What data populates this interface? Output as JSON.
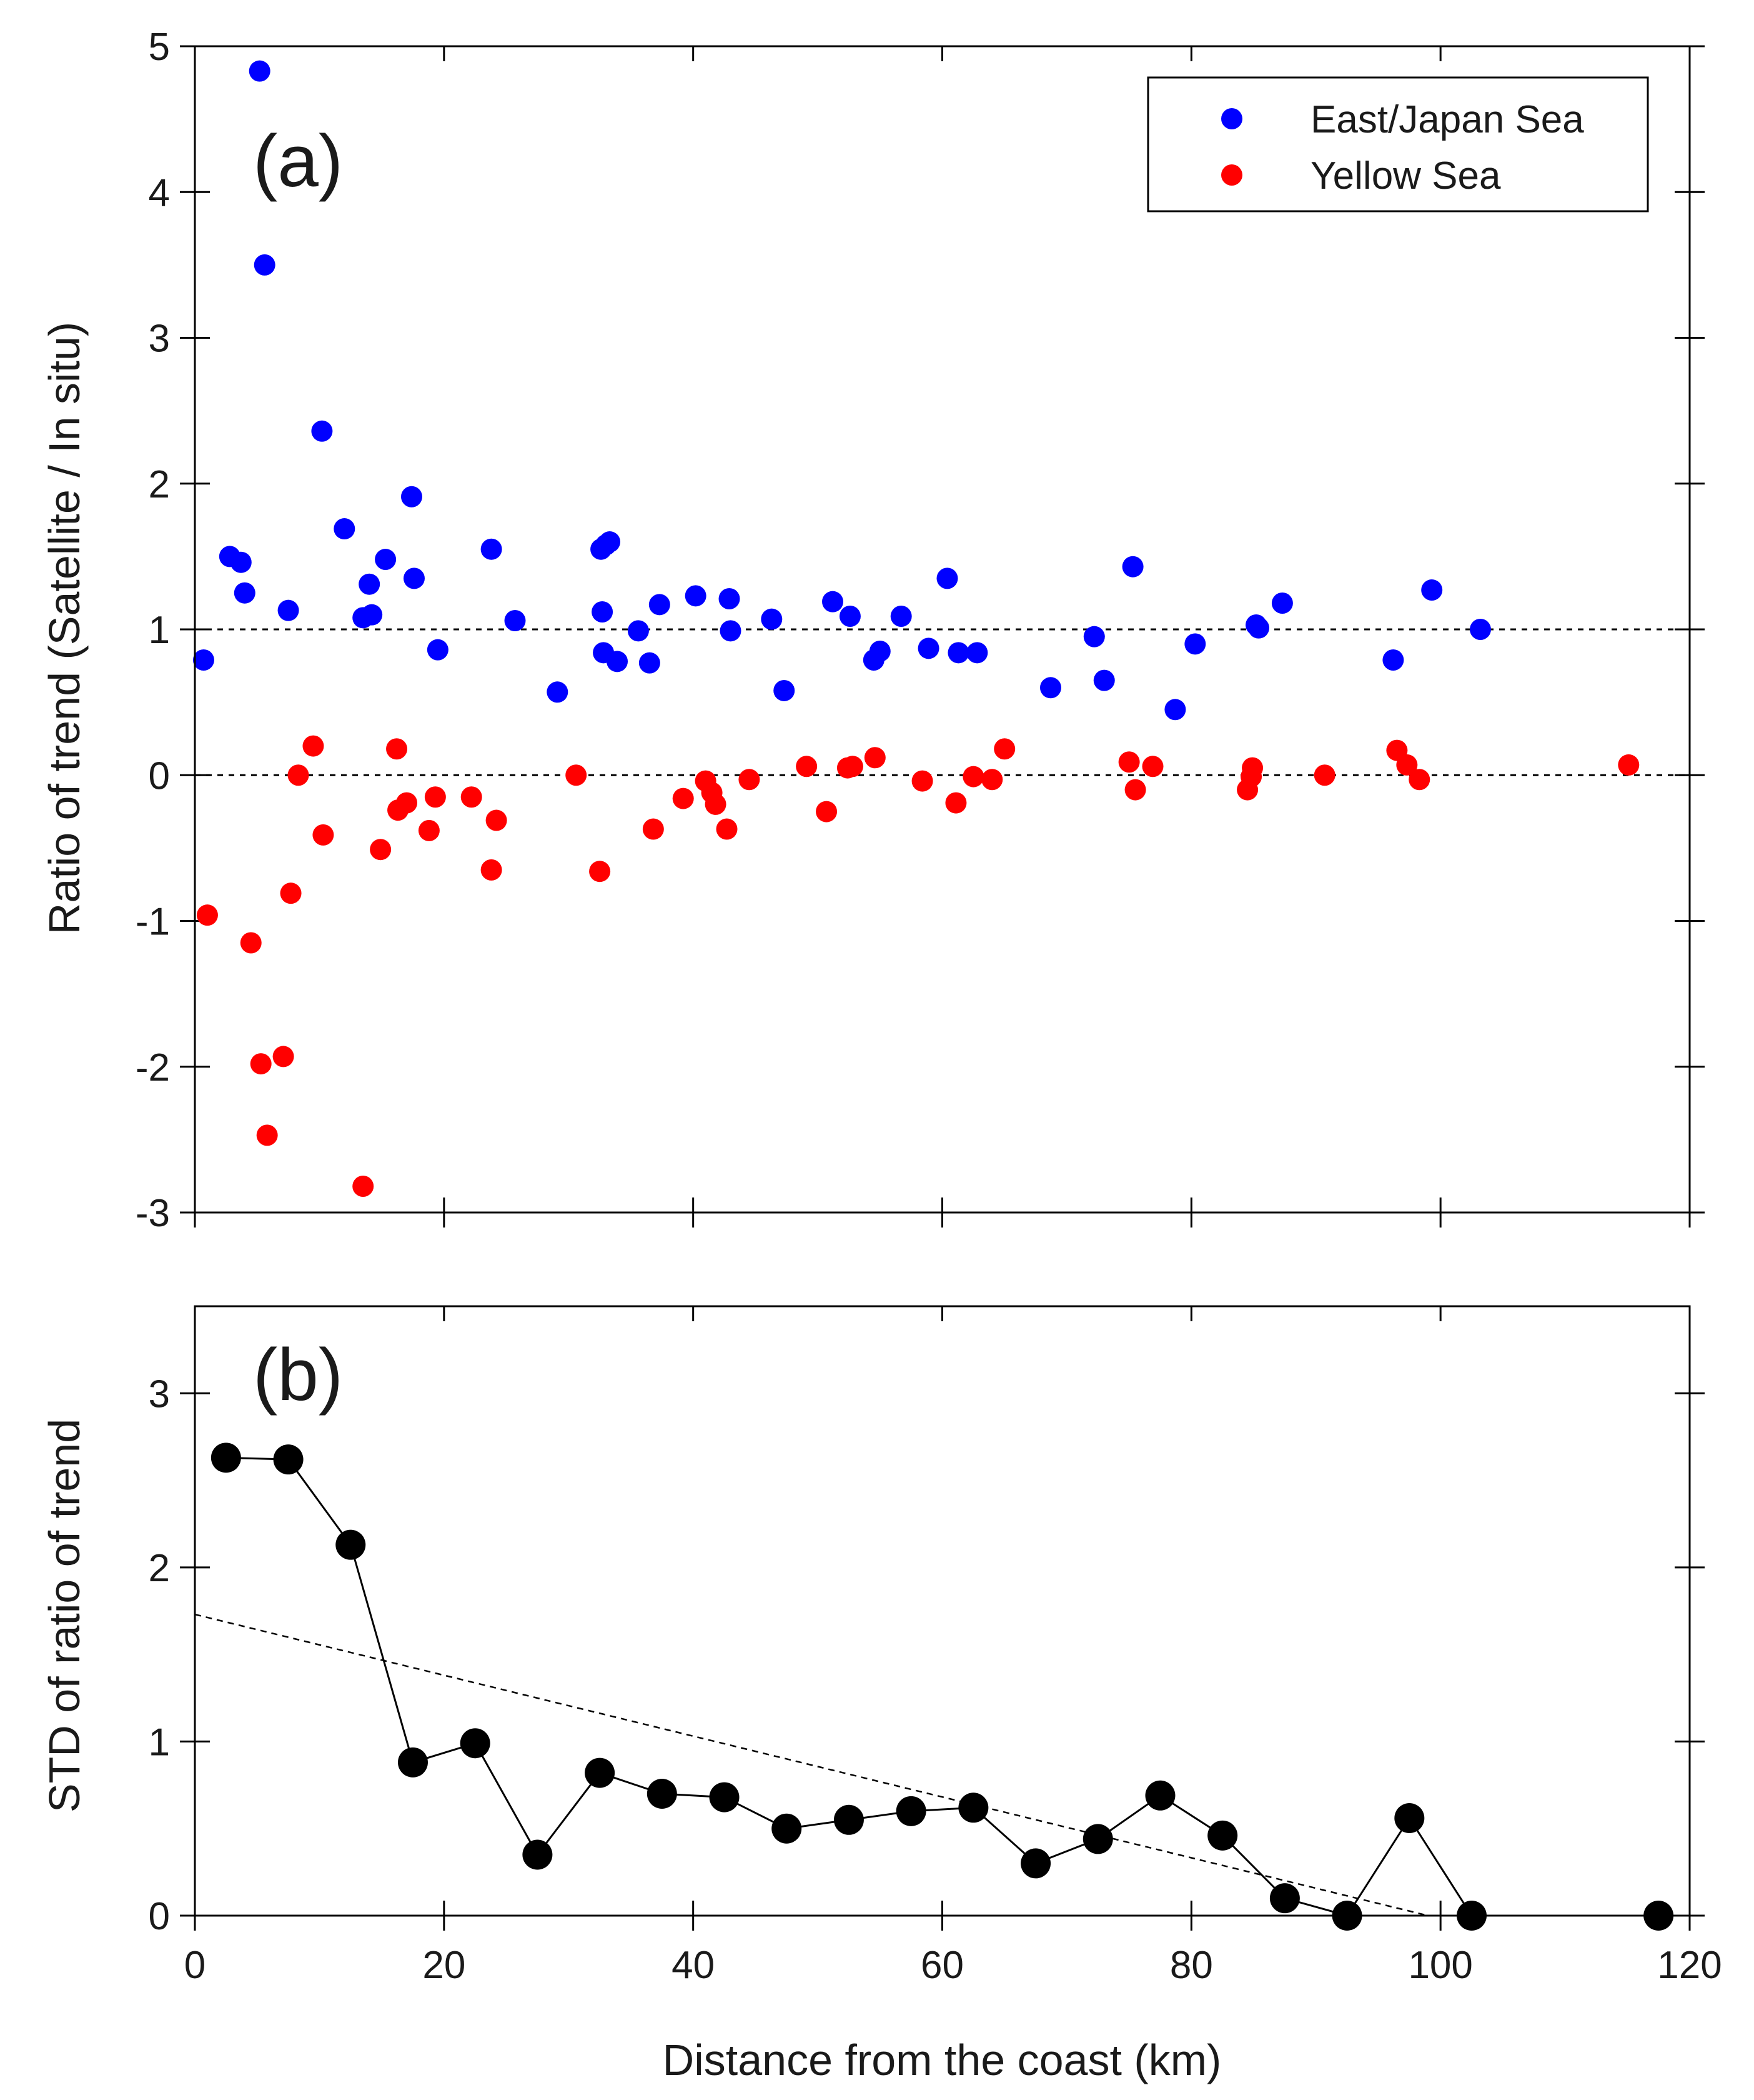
{
  "chart_data": [
    {
      "panel_label": "(a)",
      "type": "scatter",
      "xlabel": "",
      "ylabel": "Ratio of trend (Satellite / In situ)",
      "xlim": [
        0,
        120
      ],
      "ylim": [
        -3,
        5
      ],
      "x_ticks": [
        0,
        20,
        40,
        60,
        80,
        100,
        120
      ],
      "y_ticks": [
        -3,
        -2,
        -1,
        0,
        1,
        2,
        3,
        4,
        5
      ],
      "y_tick_labels": [
        "-3",
        "-2",
        "-1",
        "0",
        "1",
        "2",
        "3",
        "4",
        "5"
      ],
      "reference_lines": [
        1,
        0
      ],
      "legend_position": "top-right",
      "series": [
        {
          "name": "East/Japan Sea",
          "color": "#0000ff",
          "points": [
            [
              0.7,
              0.79
            ],
            [
              2.8,
              1.5
            ],
            [
              3.7,
              1.46
            ],
            [
              4.0,
              1.25
            ],
            [
              5.2,
              4.83
            ],
            [
              5.6,
              3.5
            ],
            [
              7.5,
              1.13
            ],
            [
              10.2,
              2.36
            ],
            [
              12.0,
              1.69
            ],
            [
              13.5,
              1.08
            ],
            [
              14.0,
              1.31
            ],
            [
              14.2,
              1.1
            ],
            [
              15.3,
              1.48
            ],
            [
              17.4,
              1.91
            ],
            [
              17.6,
              1.35
            ],
            [
              19.5,
              0.86
            ],
            [
              23.8,
              1.55
            ],
            [
              25.7,
              1.06
            ],
            [
              29.1,
              0.57
            ],
            [
              32.6,
              1.55
            ],
            [
              32.7,
              1.12
            ],
            [
              32.8,
              0.84
            ],
            [
              33.0,
              1.58
            ],
            [
              33.3,
              1.6
            ],
            [
              33.9,
              0.78
            ],
            [
              35.6,
              0.99
            ],
            [
              36.5,
              0.77
            ],
            [
              37.3,
              1.17
            ],
            [
              40.2,
              1.23
            ],
            [
              42.9,
              1.21
            ],
            [
              43.0,
              0.99
            ],
            [
              46.3,
              1.07
            ],
            [
              47.3,
              0.58
            ],
            [
              51.2,
              1.19
            ],
            [
              52.6,
              1.09
            ],
            [
              54.5,
              0.79
            ],
            [
              55.0,
              0.85
            ],
            [
              56.7,
              1.09
            ],
            [
              58.9,
              0.87
            ],
            [
              60.4,
              1.35
            ],
            [
              61.3,
              0.84
            ],
            [
              62.8,
              0.84
            ],
            [
              68.7,
              0.6
            ],
            [
              72.2,
              0.95
            ],
            [
              73.0,
              0.65
            ],
            [
              75.3,
              1.43
            ],
            [
              78.7,
              0.45
            ],
            [
              80.3,
              0.9
            ],
            [
              85.2,
              1.03
            ],
            [
              85.4,
              1.01
            ],
            [
              87.3,
              1.18
            ],
            [
              96.2,
              0.79
            ],
            [
              99.3,
              1.27
            ],
            [
              103.2,
              1.0
            ]
          ]
        },
        {
          "name": "Yellow Sea",
          "color": "#ff0000",
          "points": [
            [
              1.0,
              -0.96
            ],
            [
              4.5,
              -1.15
            ],
            [
              5.3,
              -1.98
            ],
            [
              5.8,
              -2.47
            ],
            [
              7.1,
              -1.93
            ],
            [
              7.7,
              -0.81
            ],
            [
              8.3,
              0.0
            ],
            [
              9.5,
              0.2
            ],
            [
              10.3,
              -0.41
            ],
            [
              13.5,
              -2.82
            ],
            [
              14.9,
              -0.51
            ],
            [
              16.2,
              0.18
            ],
            [
              16.3,
              -0.24
            ],
            [
              17.0,
              -0.19
            ],
            [
              18.8,
              -0.38
            ],
            [
              19.3,
              -0.15
            ],
            [
              22.2,
              -0.15
            ],
            [
              23.8,
              -0.65
            ],
            [
              24.2,
              -0.31
            ],
            [
              30.6,
              0.0
            ],
            [
              32.5,
              -0.66
            ],
            [
              36.8,
              -0.37
            ],
            [
              39.2,
              -0.16
            ],
            [
              41.0,
              -0.04
            ],
            [
              41.5,
              -0.12
            ],
            [
              41.8,
              -0.2
            ],
            [
              42.7,
              -0.37
            ],
            [
              44.5,
              -0.03
            ],
            [
              49.1,
              0.06
            ],
            [
              50.7,
              -0.25
            ],
            [
              52.4,
              0.05
            ],
            [
              52.8,
              0.06
            ],
            [
              54.6,
              0.12
            ],
            [
              58.4,
              -0.04
            ],
            [
              61.1,
              -0.19
            ],
            [
              62.5,
              -0.01
            ],
            [
              64.0,
              -0.03
            ],
            [
              65.0,
              0.18
            ],
            [
              75.0,
              0.09
            ],
            [
              75.5,
              -0.1
            ],
            [
              76.9,
              0.06
            ],
            [
              84.5,
              -0.1
            ],
            [
              84.8,
              -0.01
            ],
            [
              84.9,
              0.05
            ],
            [
              90.7,
              0.0
            ],
            [
              96.5,
              0.17
            ],
            [
              97.3,
              0.07
            ],
            [
              98.3,
              -0.03
            ],
            [
              115.1,
              0.07
            ]
          ]
        }
      ]
    },
    {
      "panel_label": "(b)",
      "type": "line",
      "xlabel": "Distance from the coast (km)",
      "ylabel": "STD of ratio of trend",
      "xlim": [
        0,
        120
      ],
      "ylim": [
        0,
        3.5
      ],
      "x_ticks": [
        0,
        20,
        40,
        60,
        80,
        100,
        120
      ],
      "x_tick_labels": [
        "0",
        "20",
        "40",
        "60",
        "80",
        "100",
        "120"
      ],
      "y_ticks": [
        0,
        1,
        2,
        3
      ],
      "y_tick_labels": [
        "0",
        "1",
        "2",
        "3"
      ],
      "series": [
        {
          "name": "STD",
          "color": "#000000",
          "x": [
            2.5,
            7.5,
            12.5,
            17.5,
            22.5,
            27.5,
            32.5,
            37.5,
            42.5,
            47.5,
            52.5,
            57.5,
            62.5,
            67.5,
            72.5,
            77.5,
            82.5,
            87.5,
            92.5,
            97.5,
            102.5,
            117.5
          ],
          "y": [
            2.63,
            2.62,
            2.13,
            0.88,
            0.99,
            0.35,
            0.82,
            0.7,
            0.68,
            0.5,
            0.55,
            0.6,
            0.62,
            0.3,
            0.44,
            0.69,
            0.46,
            0.1,
            0.0,
            0.56,
            0.0,
            0.0
          ]
        }
      ],
      "trend_line": {
        "x": [
          0,
          99
        ],
        "y": [
          1.73,
          0.0
        ]
      }
    }
  ]
}
